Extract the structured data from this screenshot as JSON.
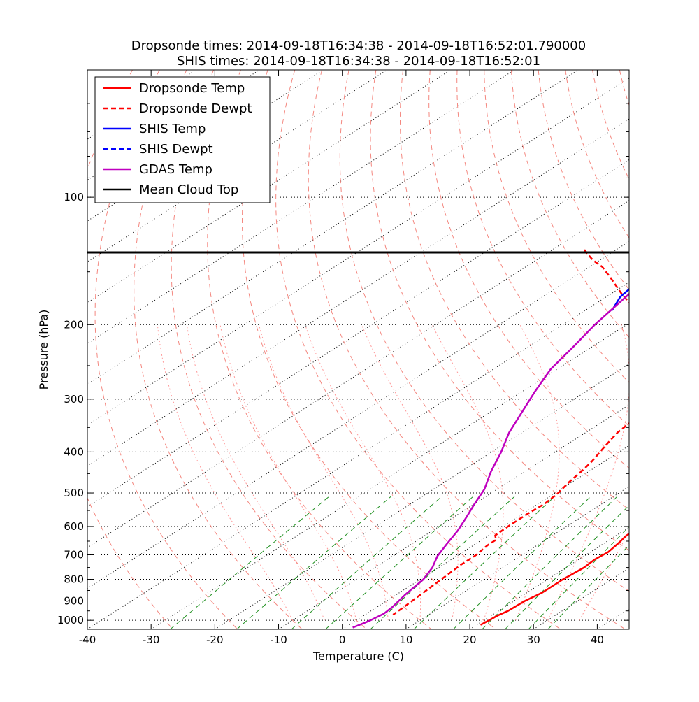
{
  "chart_data": {
    "type": "line",
    "title": [
      "Dropsonde times: 2014-09-18T16:34:38 - 2014-09-18T16:52:01.790000",
      "SHIS times: 2014-09-18T16:34:38 - 2014-09-18T16:52:01"
    ],
    "xlabel": "Temperature (C)",
    "ylabel": "Pressure (hPa)",
    "xlim": [
      -40,
      45
    ],
    "ylim": [
      1050,
      50
    ],
    "x_ticks": [
      -40,
      -30,
      -20,
      -10,
      0,
      10,
      20,
      30,
      40
    ],
    "y_ticks": [
      1000,
      900,
      800,
      700,
      600,
      500,
      400,
      300,
      200,
      100
    ],
    "skew": 45,
    "legend_location": "upper-left",
    "colors": {
      "dropsonde": "#ff0000",
      "shis": "#0000ff",
      "gdas": "#bf00bf",
      "cloud_top": "#000000",
      "isotherm": "#000000",
      "dry_adiabat": "#f4877f",
      "moist_adiabat": "#ff9999",
      "mixing_ratio": "#209020"
    },
    "series": [
      {
        "name": "Dropsonde Temp",
        "style": "solid",
        "color_key": "dropsonde",
        "points": [
          [
            -2.6,
            83
          ],
          [
            -2.7,
            100
          ],
          [
            -2.8,
            104
          ],
          [
            -3.6,
            108
          ],
          [
            -5.8,
            112
          ],
          [
            -8.5,
            116
          ],
          [
            -9.6,
            120
          ],
          [
            -9.7,
            123
          ],
          [
            -9.5,
            127
          ],
          [
            -9,
            131
          ],
          [
            -8.5,
            135
          ],
          [
            -8,
            138
          ],
          [
            -7.5,
            142
          ],
          [
            -7,
            147
          ],
          [
            -6,
            155
          ],
          [
            -4,
            170
          ],
          [
            -2,
            185
          ],
          [
            0,
            200
          ],
          [
            2,
            220
          ],
          [
            4,
            240
          ],
          [
            6,
            262
          ],
          [
            8,
            282
          ],
          [
            10,
            302
          ],
          [
            11,
            318
          ],
          [
            12.5,
            332
          ],
          [
            14,
            350
          ],
          [
            15,
            370
          ],
          [
            16,
            392
          ],
          [
            17,
            412
          ],
          [
            18,
            432
          ],
          [
            18,
            452
          ],
          [
            18.4,
            470
          ],
          [
            18.7,
            492
          ],
          [
            19.4,
            515
          ],
          [
            19.8,
            537
          ],
          [
            20.5,
            560
          ],
          [
            21.2,
            583
          ],
          [
            21.7,
            607
          ],
          [
            21.6,
            630
          ],
          [
            22.2,
            655
          ],
          [
            22.8,
            690
          ],
          [
            22.5,
            717
          ],
          [
            22.8,
            750
          ],
          [
            22.4,
            800
          ],
          [
            22.4,
            860
          ],
          [
            21.7,
            900
          ],
          [
            21.5,
            950
          ],
          [
            21,
            975
          ],
          [
            20.8,
            1005
          ],
          [
            20.6,
            1025
          ]
        ]
      },
      {
        "name": "Dropsonde Dewpt",
        "style": "dashed",
        "color_key": "dropsonde",
        "points": [
          [
            -55,
            133
          ],
          [
            -53,
            137
          ],
          [
            -51,
            141
          ],
          [
            -48,
            146
          ],
          [
            -44,
            155
          ],
          [
            -38,
            170
          ],
          [
            -32,
            185
          ],
          [
            -26,
            200
          ],
          [
            -21,
            220
          ],
          [
            -17,
            240
          ],
          [
            -13,
            260
          ],
          [
            -10,
            280
          ],
          [
            -8,
            300
          ],
          [
            -6.5,
            320
          ],
          [
            -5.5,
            340
          ],
          [
            -5,
            360
          ],
          [
            -4,
            380
          ],
          [
            -3,
            400
          ],
          [
            -2,
            420
          ],
          [
            -1.3,
            440
          ],
          [
            -0.5,
            470
          ],
          [
            0.5,
            500
          ],
          [
            1,
            530
          ],
          [
            0.8,
            560
          ],
          [
            0.8,
            600
          ],
          [
            1,
            630
          ],
          [
            2.2,
            645
          ],
          [
            2.2,
            665
          ],
          [
            2.8,
            700
          ],
          [
            2.8,
            740
          ],
          [
            3.3,
            800
          ],
          [
            3.8,
            870
          ],
          [
            4.2,
            930
          ],
          [
            4.4,
            970
          ]
        ]
      },
      {
        "name": "SHIS Temp",
        "style": "solid",
        "color_key": "shis",
        "points": [
          [
            -24,
            50
          ],
          [
            -27,
            55
          ],
          [
            -29,
            60
          ],
          [
            -31,
            66
          ],
          [
            -33,
            73
          ],
          [
            -34.8,
            80
          ],
          [
            -35.6,
            87
          ],
          [
            -36.8,
            94
          ],
          [
            -37.4,
            101
          ],
          [
            -37.9,
            110
          ],
          [
            -38.5,
            118
          ],
          [
            -38.8,
            126
          ],
          [
            -39.1,
            135
          ],
          [
            -39.2,
            145
          ],
          [
            -38.8,
            158
          ],
          [
            -37.8,
            172
          ],
          [
            -35.8,
            185
          ]
        ]
      },
      {
        "name": "GDAS Temp",
        "style": "solid",
        "color_key": "gdas",
        "points": [
          [
            -23,
            50
          ],
          [
            -26.5,
            55
          ],
          [
            -29,
            60
          ],
          [
            -30.5,
            66
          ],
          [
            -32.5,
            73
          ],
          [
            -34,
            80
          ],
          [
            -35.2,
            87
          ],
          [
            -36,
            95
          ],
          [
            -36.8,
            103
          ],
          [
            -37.7,
            112
          ],
          [
            -38.5,
            122
          ],
          [
            -39,
            133
          ],
          [
            -39,
            143
          ],
          [
            -38,
            158
          ],
          [
            -36.5,
            178
          ],
          [
            -35,
            200
          ],
          [
            -33,
            225
          ],
          [
            -31,
            255
          ],
          [
            -28,
            288
          ],
          [
            -25,
            322
          ],
          [
            -22,
            360
          ],
          [
            -18.5,
            400
          ],
          [
            -15.3,
            445
          ],
          [
            -12,
            490
          ],
          [
            -10,
            530
          ],
          [
            -8,
            570
          ],
          [
            -6,
            615
          ],
          [
            -4.5,
            660
          ],
          [
            -3,
            705
          ],
          [
            -1,
            750
          ],
          [
            0.5,
            800
          ],
          [
            1.4,
            870
          ],
          [
            2.4,
            930
          ],
          [
            2.7,
            965
          ],
          [
            2.2,
            1000
          ],
          [
            2,
            1010
          ],
          [
            1.5,
            1030
          ],
          [
            1.2,
            1040
          ]
        ]
      }
    ],
    "cloud_top_hpa": 135,
    "legend": [
      "Dropsonde Temp",
      "Dropsonde Dewpt",
      "SHIS Temp",
      "SHIS Dewpt",
      "GDAS Temp",
      "Mean Cloud Top"
    ]
  }
}
